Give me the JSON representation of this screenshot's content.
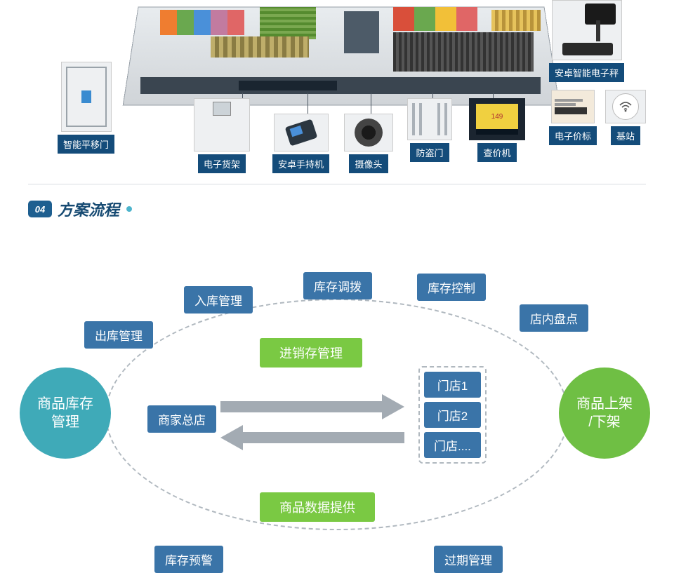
{
  "colors": {
    "device_label_bg": "#144c7a",
    "flow_pill_bg": "#3a74a8",
    "flow_green_bg": "#7ac943",
    "circle_teal": "#3faab8",
    "circle_green": "#6fbf44",
    "ellipse_border": "#b0b8bf",
    "arrow_gray": "#a3abb3",
    "sec_num_bg": "#1e5f90",
    "sec_title_color": "#164a72",
    "sec_dot": "#4db4cc"
  },
  "devices": {
    "sliding_door": "智能平移门",
    "shelf": "电子货架",
    "handheld": "安卓手持机",
    "camera": "摄像头",
    "anti_theft": "防盗门",
    "price_check": "查价机",
    "scale": "安卓智能电子秤",
    "price_tag": "电子价标",
    "base_station": "基站",
    "price_demo": "149"
  },
  "section": {
    "num": "04",
    "title": "方案流程"
  },
  "flow": {
    "left_circle": "商品库存\n管理",
    "right_circle": "商品上架\n/下架",
    "green_top": "进销存管理",
    "green_bottom": "商品数据提供",
    "hq": "商家总店",
    "stores": [
      "门店1",
      "门店2",
      "门店...."
    ],
    "pills": {
      "outbound": "出库管理",
      "inbound": "入库管理",
      "transfer": "库存调拨",
      "control": "库存控制",
      "instore": "店内盘点",
      "alert": "库存预警",
      "expire": "过期管理"
    }
  }
}
